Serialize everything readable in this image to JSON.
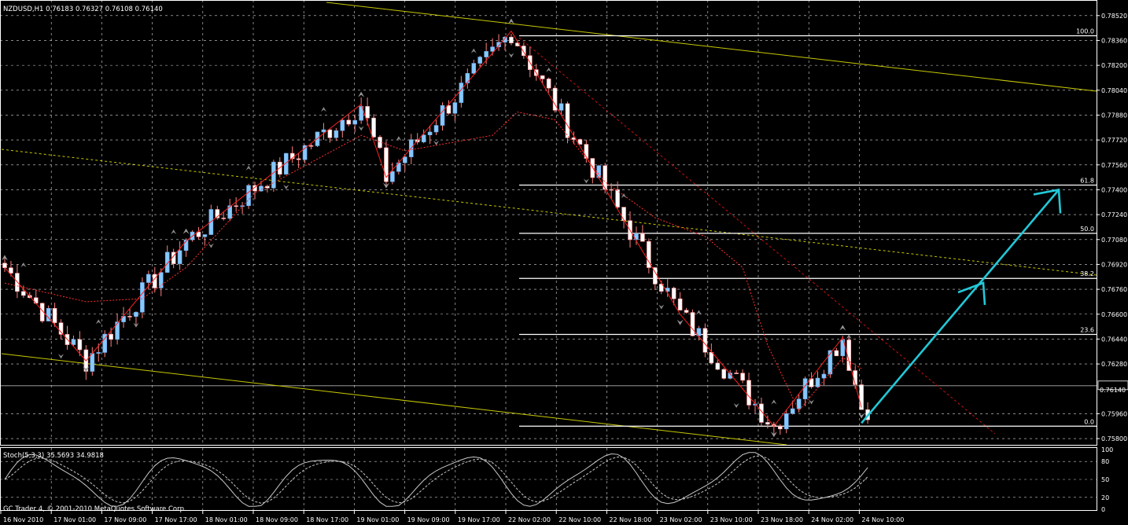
{
  "chart_data": {
    "type": "candlestick",
    "title": "NZDUSD,H1  0.76183 0.76327 0.76108 0.76140",
    "copyright": "GC Trader 4, © 2001-2010 MetaQuotes Software Corp.",
    "ylim": [
      0.7576,
      0.7862
    ],
    "y_ticks": [
      "0.78520",
      "0.78360",
      "0.78200",
      "0.78040",
      "0.77880",
      "0.77720",
      "0.77560",
      "0.77400",
      "0.77240",
      "0.77080",
      "0.76920",
      "0.76760",
      "0.76600",
      "0.76440",
      "0.76280",
      "0.76140",
      "0.75960",
      "0.75800"
    ],
    "last_price": 0.7614,
    "last_price_label": "0.76140",
    "x_labels": [
      "16 Nov 2010",
      "17 Nov 01:00",
      "17 Nov 09:00",
      "17 Nov 17:00",
      "18 Nov 01:00",
      "18 Nov 09:00",
      "18 Nov 17:00",
      "19 Nov 01:00",
      "19 Nov 09:00",
      "19 Nov 17:00",
      "22 Nov 02:00",
      "22 Nov 10:00",
      "22 Nov 18:00",
      "23 Nov 02:00",
      "23 Nov 10:00",
      "23 Nov 18:00",
      "24 Nov 02:00",
      "24 Nov 10:00"
    ],
    "fibonacci": [
      {
        "level": "100.0",
        "price": 0.7839
      },
      {
        "level": "61.8",
        "price": 0.7743
      },
      {
        "level": "50.0",
        "price": 0.7712
      },
      {
        "level": "38.2",
        "price": 0.7683
      },
      {
        "level": "23.6",
        "price": 0.7647
      },
      {
        "level": "0.0",
        "price": 0.7588
      }
    ],
    "zigzag": [
      [
        0,
        0.769
      ],
      [
        13,
        0.763
      ],
      [
        29,
        0.7707
      ],
      [
        57,
        0.7795
      ],
      [
        61,
        0.7748
      ],
      [
        81,
        0.7842
      ],
      [
        108,
        0.766
      ],
      [
        123,
        0.7588
      ],
      [
        134,
        0.7645
      ],
      [
        137,
        0.76
      ]
    ],
    "wave": [
      [
        0,
        0.768
      ],
      [
        13,
        0.7668
      ],
      [
        22,
        0.767
      ],
      [
        29,
        0.769
      ],
      [
        40,
        0.7738
      ],
      [
        57,
        0.7775
      ],
      [
        64,
        0.7765
      ],
      [
        78,
        0.7775
      ],
      [
        82,
        0.779
      ],
      [
        88,
        0.7785
      ],
      [
        96,
        0.7745
      ],
      [
        104,
        0.7722
      ],
      [
        112,
        0.771
      ],
      [
        118,
        0.769
      ],
      [
        122,
        0.764
      ],
      [
        127,
        0.7598
      ],
      [
        134,
        0.7632
      ],
      [
        137,
        0.7625
      ]
    ],
    "stochastic": {
      "label": "Stoch(5,3,3) 35.5693 34.9818",
      "levels": [
        "100",
        "80",
        "50",
        "20",
        "0"
      ],
      "dashed_levels": [
        80,
        50,
        20
      ]
    },
    "projection_arrow": {
      "color": "#22c8d8",
      "from": [
        137,
        0.759
      ],
      "to": [
        167,
        0.774
      ],
      "mid_head": [
        155,
        0.768
      ]
    },
    "colors": {
      "bull": "#87c8ff",
      "bear": "#ffffff",
      "zigzag": "#ff2020",
      "channel": "#c8c800",
      "arrow": "#22c8d8",
      "grid": "#ffffff"
    }
  }
}
